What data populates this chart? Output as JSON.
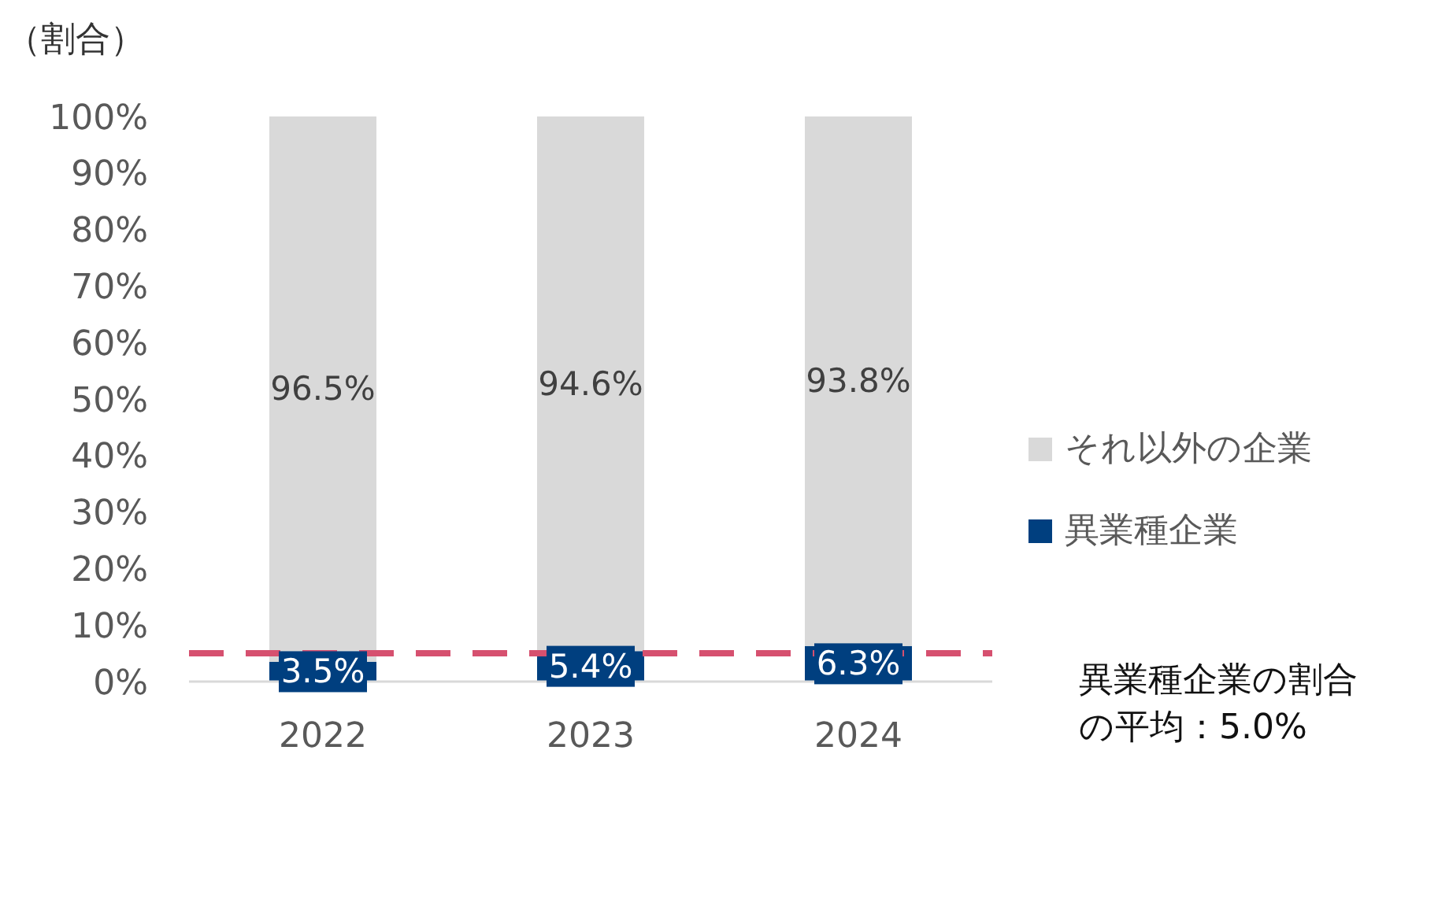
{
  "chart_data": {
    "type": "bar",
    "ylabel": "（割合）",
    "stacked": true,
    "categories": [
      "2022",
      "2023",
      "2024"
    ],
    "series": [
      {
        "name": "異業種企業",
        "color": "#003f7f",
        "values": [
          3.5,
          5.4,
          6.3
        ],
        "value_labels": [
          "3.5%",
          "5.4%",
          "6.3%"
        ]
      },
      {
        "name": "それ以外の企業",
        "color": "#d9d9d9",
        "values": [
          96.5,
          94.6,
          93.8
        ],
        "value_labels": [
          "96.5%",
          "94.6%",
          "93.8%"
        ]
      }
    ],
    "ylim": [
      0,
      100
    ],
    "yticks": [
      {
        "value": 0,
        "label": "0%"
      },
      {
        "value": 10,
        "label": "10%"
      },
      {
        "value": 20,
        "label": "20%"
      },
      {
        "value": 30,
        "label": "30%"
      },
      {
        "value": 40,
        "label": "40%"
      },
      {
        "value": 50,
        "label": "50%"
      },
      {
        "value": 60,
        "label": "60%"
      },
      {
        "value": 70,
        "label": "70%"
      },
      {
        "value": 80,
        "label": "80%"
      },
      {
        "value": 90,
        "label": "90%"
      },
      {
        "value": 100,
        "label": "100%"
      }
    ],
    "ref_lines": [
      {
        "axis": "y",
        "value": 5.0,
        "label": "異業種企業の割合の平均：5.0%",
        "color": "#d6506f",
        "line_style": "dashed"
      }
    ],
    "grid": false,
    "legend": "right"
  }
}
